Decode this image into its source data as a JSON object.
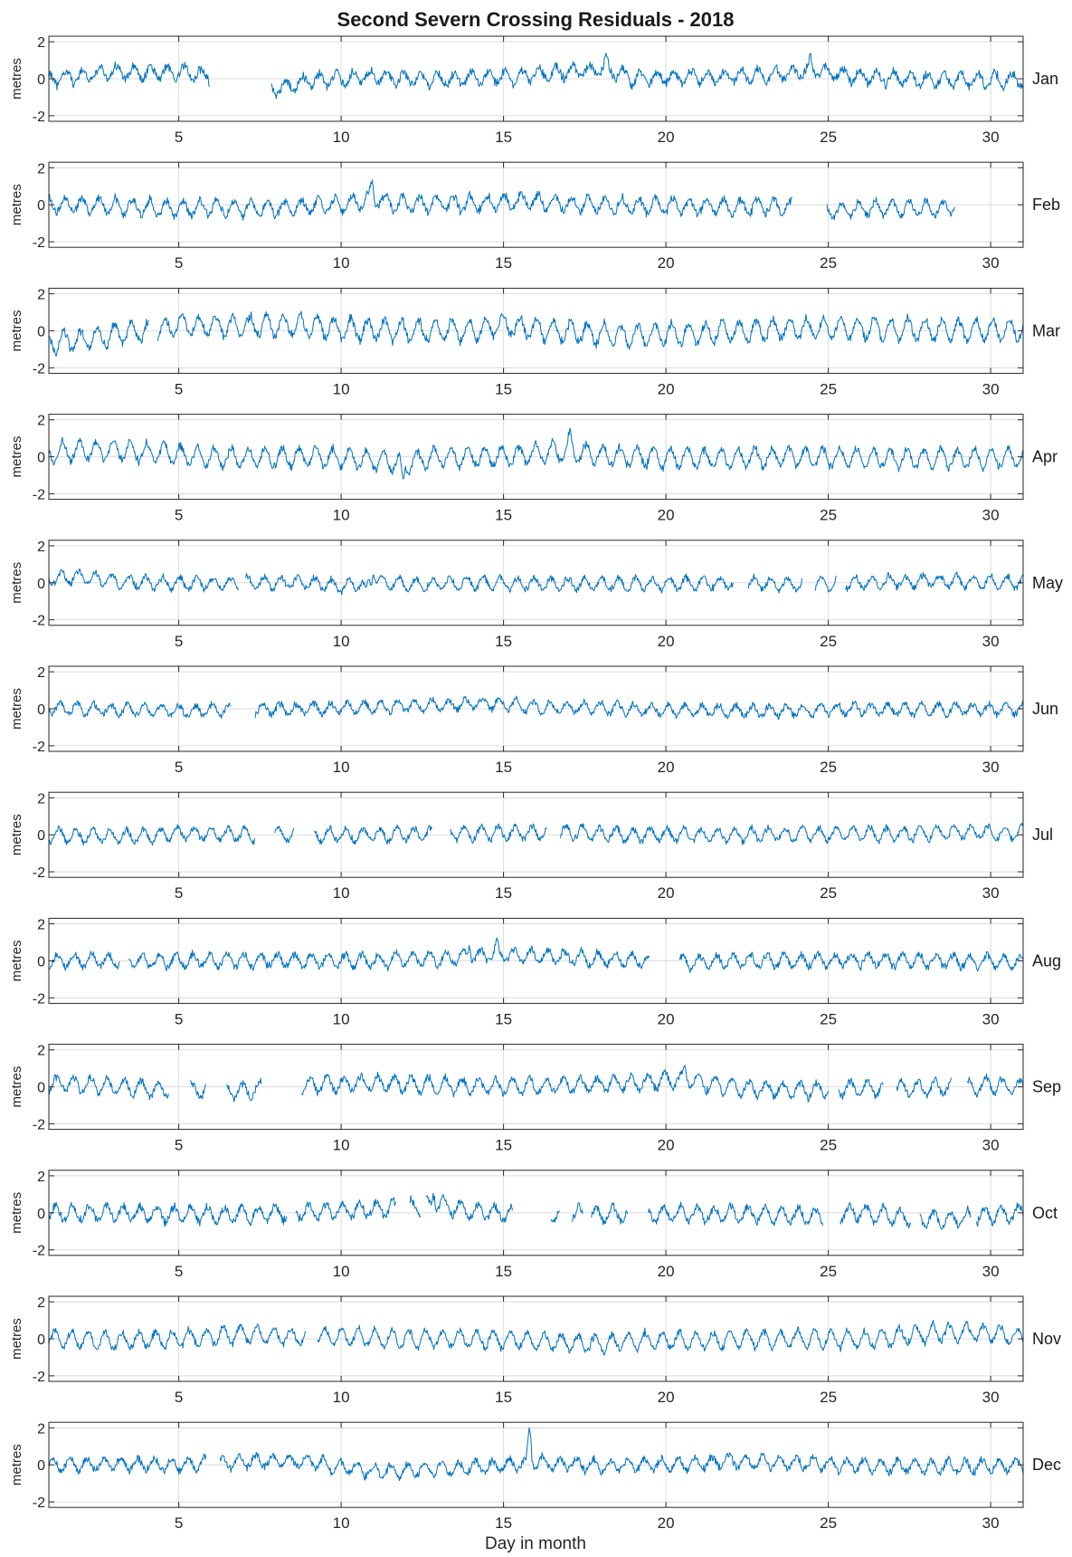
{
  "chart_data": {
    "type": "line",
    "title": "Second Severn Crossing Residuals - 2018",
    "xlabel": "Day in month",
    "ylabel": "metres",
    "xlim": [
      1,
      31
    ],
    "ylim": [
      -2,
      2
    ],
    "xticks": [
      5,
      10,
      15,
      20,
      25,
      30
    ],
    "yticks": [
      -2,
      0,
      2
    ],
    "grid": true,
    "line_color": "#0072BD",
    "panels": [
      {
        "name": "Jan",
        "mean": 0.0,
        "amp": 0.35,
        "period": 0.52,
        "noise": 0.22,
        "gaps": [
          [
            5.95,
            7.85
          ]
        ],
        "knots": [
          [
            1,
            -0.05
          ],
          [
            2,
            0.15
          ],
          [
            3,
            0.4
          ],
          [
            4,
            0.3
          ],
          [
            5,
            0.35
          ],
          [
            5.9,
            0.2
          ],
          [
            7.9,
            -0.6
          ],
          [
            9,
            -0.1
          ],
          [
            11,
            0.1
          ],
          [
            13,
            -0.05
          ],
          [
            15,
            0.1
          ],
          [
            17,
            0.35
          ],
          [
            18.2,
            0.5
          ],
          [
            19,
            0.0
          ],
          [
            21,
            0.1
          ],
          [
            23,
            0.15
          ],
          [
            24.5,
            0.45
          ],
          [
            26,
            0.1
          ],
          [
            28,
            -0.05
          ],
          [
            31,
            -0.05
          ]
        ],
        "spikes": [
          [
            18.15,
            0.6
          ],
          [
            24.45,
            0.45
          ]
        ]
      },
      {
        "name": "Feb",
        "mean": 0.0,
        "amp": 0.4,
        "period": 0.52,
        "noise": 0.2,
        "gaps": [
          [
            23.9,
            24.95
          ],
          [
            28.9,
            31
          ]
        ],
        "knots": [
          [
            1,
            0.0
          ],
          [
            3,
            -0.05
          ],
          [
            4.5,
            -0.2
          ],
          [
            6,
            -0.15
          ],
          [
            8,
            -0.2
          ],
          [
            10,
            0.0
          ],
          [
            11,
            0.3
          ],
          [
            12,
            0.0
          ],
          [
            14,
            0.05
          ],
          [
            15.5,
            0.2
          ],
          [
            17,
            0.05
          ],
          [
            19,
            -0.05
          ],
          [
            21,
            -0.1
          ],
          [
            23.8,
            -0.1
          ],
          [
            25,
            -0.35
          ],
          [
            26.5,
            -0.2
          ],
          [
            28.8,
            -0.15
          ]
        ],
        "spikes": [
          [
            10.95,
            0.8
          ]
        ]
      },
      {
        "name": "Mar",
        "mean": 0.0,
        "amp": 0.55,
        "period": 0.52,
        "noise": 0.2,
        "gaps": [
          [
            4.1,
            4.35
          ]
        ],
        "knots": [
          [
            1,
            -0.6
          ],
          [
            2,
            -0.5
          ],
          [
            3,
            -0.2
          ],
          [
            4,
            0.0
          ],
          [
            5,
            0.3
          ],
          [
            7,
            0.25
          ],
          [
            9,
            0.3
          ],
          [
            10,
            0.1
          ],
          [
            12,
            0.0
          ],
          [
            14,
            0.0
          ],
          [
            15,
            0.3
          ],
          [
            16,
            0.1
          ],
          [
            18,
            -0.2
          ],
          [
            19,
            -0.3
          ],
          [
            20,
            -0.2
          ],
          [
            22,
            -0.05
          ],
          [
            23,
            0.05
          ],
          [
            25,
            0.15
          ],
          [
            27,
            0.1
          ],
          [
            29,
            0.0
          ],
          [
            31,
            0.1
          ]
        ],
        "spikes": []
      },
      {
        "name": "Apr",
        "mean": 0.0,
        "amp": 0.5,
        "period": 0.52,
        "noise": 0.18,
        "gaps": [],
        "knots": [
          [
            1,
            0.2
          ],
          [
            2,
            0.35
          ],
          [
            3,
            0.35
          ],
          [
            4,
            0.25
          ],
          [
            5,
            0.1
          ],
          [
            7,
            -0.05
          ],
          [
            9,
            0.0
          ],
          [
            11,
            -0.2
          ],
          [
            12,
            -0.3
          ],
          [
            13,
            0.0
          ],
          [
            15,
            0.0
          ],
          [
            16,
            0.2
          ],
          [
            17,
            0.3
          ],
          [
            18,
            0.05
          ],
          [
            20,
            -0.05
          ],
          [
            22,
            -0.1
          ],
          [
            24,
            0.0
          ],
          [
            26,
            -0.05
          ],
          [
            28,
            -0.1
          ],
          [
            31,
            -0.05
          ]
        ],
        "spikes": [
          [
            11.9,
            -1.1
          ],
          [
            17.05,
            0.7
          ]
        ]
      },
      {
        "name": "May",
        "mean": 0.0,
        "amp": 0.32,
        "period": 0.52,
        "noise": 0.16,
        "gaps": [
          [
            6.85,
            7.05
          ],
          [
            22.1,
            22.5
          ],
          [
            24.2,
            24.6
          ],
          [
            25.25,
            25.5
          ]
        ],
        "knots": [
          [
            1,
            0.25
          ],
          [
            2,
            0.3
          ],
          [
            3,
            0.1
          ],
          [
            5,
            -0.05
          ],
          [
            7,
            0.0
          ],
          [
            9,
            0.0
          ],
          [
            10,
            -0.2
          ],
          [
            11,
            0.1
          ],
          [
            12,
            -0.1
          ],
          [
            14,
            0.0
          ],
          [
            16,
            -0.05
          ],
          [
            18,
            -0.05
          ],
          [
            20,
            -0.05
          ],
          [
            22,
            0.0
          ],
          [
            24,
            -0.1
          ],
          [
            26,
            0.0
          ],
          [
            28,
            0.1
          ],
          [
            31,
            0.0
          ]
        ],
        "spikes": [
          [
            11.0,
            0.55
          ],
          [
            10.75,
            -0.7
          ]
        ]
      },
      {
        "name": "Jun",
        "mean": 0.0,
        "amp": 0.3,
        "period": 0.52,
        "noise": 0.16,
        "gaps": [
          [
            6.6,
            7.35
          ]
        ],
        "knots": [
          [
            1,
            0.05
          ],
          [
            3,
            -0.05
          ],
          [
            5,
            -0.1
          ],
          [
            7,
            -0.05
          ],
          [
            9,
            0.0
          ],
          [
            11,
            0.1
          ],
          [
            13,
            0.2
          ],
          [
            14.5,
            0.3
          ],
          [
            16,
            0.1
          ],
          [
            18,
            0.05
          ],
          [
            20,
            -0.05
          ],
          [
            22,
            -0.1
          ],
          [
            24,
            -0.1
          ],
          [
            26,
            0.0
          ],
          [
            28,
            -0.05
          ],
          [
            31,
            0.0
          ]
        ],
        "spikes": []
      },
      {
        "name": "Jul",
        "mean": 0.0,
        "amp": 0.35,
        "period": 0.52,
        "noise": 0.16,
        "gaps": [
          [
            7.35,
            7.95
          ],
          [
            8.55,
            9.15
          ],
          [
            12.8,
            13.35
          ],
          [
            16.35,
            16.75
          ]
        ],
        "knots": [
          [
            1,
            0.0
          ],
          [
            3,
            -0.1
          ],
          [
            5,
            0.05
          ],
          [
            7,
            0.0
          ],
          [
            9,
            -0.05
          ],
          [
            11,
            0.0
          ],
          [
            13,
            0.05
          ],
          [
            15,
            0.1
          ],
          [
            17,
            0.15
          ],
          [
            19,
            0.0
          ],
          [
            21,
            0.0
          ],
          [
            23,
            0.0
          ],
          [
            25,
            0.05
          ],
          [
            27,
            0.05
          ],
          [
            29,
            0.15
          ],
          [
            31,
            0.1
          ]
        ],
        "spikes": []
      },
      {
        "name": "Aug",
        "mean": 0.0,
        "amp": 0.35,
        "period": 0.52,
        "noise": 0.18,
        "gaps": [
          [
            3.2,
            3.45
          ],
          [
            19.5,
            20.4
          ]
        ],
        "knots": [
          [
            1,
            0.0
          ],
          [
            3,
            0.0
          ],
          [
            5,
            0.0
          ],
          [
            7,
            0.05
          ],
          [
            9,
            0.0
          ],
          [
            11,
            0.0
          ],
          [
            13,
            0.1
          ],
          [
            14.5,
            0.3
          ],
          [
            16,
            0.3
          ],
          [
            18,
            0.1
          ],
          [
            19.4,
            0.0
          ],
          [
            20.5,
            -0.1
          ],
          [
            22,
            0.0
          ],
          [
            24,
            0.0
          ],
          [
            26,
            0.05
          ],
          [
            28,
            0.0
          ],
          [
            31,
            -0.05
          ]
        ],
        "spikes": [
          [
            13.95,
            0.65
          ],
          [
            14.8,
            0.55
          ]
        ]
      },
      {
        "name": "Sep",
        "mean": 0.0,
        "amp": 0.4,
        "period": 0.52,
        "noise": 0.18,
        "gaps": [
          [
            4.7,
            5.35
          ],
          [
            5.85,
            6.45
          ],
          [
            7.55,
            8.75
          ],
          [
            25,
            25.3
          ],
          [
            26.7,
            27.1
          ],
          [
            28.8,
            29.25
          ]
        ],
        "knots": [
          [
            1,
            0.2
          ],
          [
            3,
            0.0
          ],
          [
            4.6,
            -0.2
          ],
          [
            7,
            -0.2
          ],
          [
            9,
            0.1
          ],
          [
            11,
            0.2
          ],
          [
            13,
            0.1
          ],
          [
            15,
            0.0
          ],
          [
            17,
            0.1
          ],
          [
            19,
            0.2
          ],
          [
            20.5,
            0.4
          ],
          [
            22,
            0.0
          ],
          [
            24,
            -0.2
          ],
          [
            26,
            -0.1
          ],
          [
            28,
            -0.1
          ],
          [
            30,
            0.1
          ],
          [
            31,
            0.0
          ]
        ],
        "spikes": [
          [
            20.6,
            0.6
          ]
        ]
      },
      {
        "name": "Oct",
        "mean": 0.0,
        "amp": 0.4,
        "period": 0.52,
        "noise": 0.2,
        "gaps": [
          [
            8.35,
            8.6
          ],
          [
            11.7,
            12.1
          ],
          [
            12.45,
            12.6
          ],
          [
            15.3,
            16.45
          ],
          [
            16.75,
            17.1
          ],
          [
            17.45,
            17.7
          ],
          [
            18.85,
            19.45
          ],
          [
            24.85,
            25.35
          ],
          [
            27.55,
            27.8
          ],
          [
            29.4,
            29.55
          ]
        ],
        "knots": [
          [
            1,
            0.0
          ],
          [
            3,
            0.0
          ],
          [
            5,
            -0.1
          ],
          [
            7,
            -0.1
          ],
          [
            8.3,
            0.0
          ],
          [
            10,
            0.1
          ],
          [
            12,
            0.3
          ],
          [
            13,
            0.5
          ],
          [
            14,
            0.1
          ],
          [
            15,
            -0.05
          ],
          [
            17,
            -0.05
          ],
          [
            19,
            -0.1
          ],
          [
            21,
            -0.05
          ],
          [
            23,
            -0.1
          ],
          [
            24.8,
            -0.2
          ],
          [
            26,
            0.05
          ],
          [
            27.5,
            -0.3
          ],
          [
            28.5,
            -0.4
          ],
          [
            30,
            -0.1
          ],
          [
            31,
            0.0
          ]
        ],
        "spikes": [
          [
            12.85,
            0.75
          ]
        ]
      },
      {
        "name": "Nov",
        "mean": 0.0,
        "amp": 0.45,
        "period": 0.52,
        "noise": 0.16,
        "gaps": [
          [
            8.9,
            9.25
          ]
        ],
        "knots": [
          [
            1,
            0.0
          ],
          [
            3,
            -0.1
          ],
          [
            5,
            0.0
          ],
          [
            7,
            0.25
          ],
          [
            8.8,
            0.1
          ],
          [
            10,
            0.1
          ],
          [
            12,
            0.0
          ],
          [
            14,
            0.0
          ],
          [
            16,
            -0.1
          ],
          [
            18,
            -0.3
          ],
          [
            19,
            -0.1
          ],
          [
            21,
            -0.1
          ],
          [
            23,
            0.0
          ],
          [
            25,
            0.0
          ],
          [
            26,
            -0.05
          ],
          [
            27,
            0.1
          ],
          [
            28.5,
            0.35
          ],
          [
            30,
            0.3
          ],
          [
            31,
            0.05
          ]
        ],
        "spikes": []
      },
      {
        "name": "Dec",
        "mean": 0.0,
        "amp": 0.33,
        "period": 0.52,
        "noise": 0.18,
        "gaps": [
          [
            5.85,
            6.25
          ]
        ],
        "knots": [
          [
            1,
            0.0
          ],
          [
            3,
            0.05
          ],
          [
            5,
            0.0
          ],
          [
            7,
            0.2
          ],
          [
            9,
            0.2
          ],
          [
            9.5,
            0.0
          ],
          [
            11,
            -0.35
          ],
          [
            13,
            -0.2
          ],
          [
            15,
            -0.05
          ],
          [
            16,
            0.15
          ],
          [
            18,
            -0.05
          ],
          [
            20,
            0.0
          ],
          [
            22,
            0.2
          ],
          [
            24,
            0.1
          ],
          [
            26,
            -0.05
          ],
          [
            28,
            -0.1
          ],
          [
            31,
            -0.05
          ]
        ],
        "spikes": [
          [
            15.8,
            1.9
          ]
        ]
      }
    ]
  }
}
